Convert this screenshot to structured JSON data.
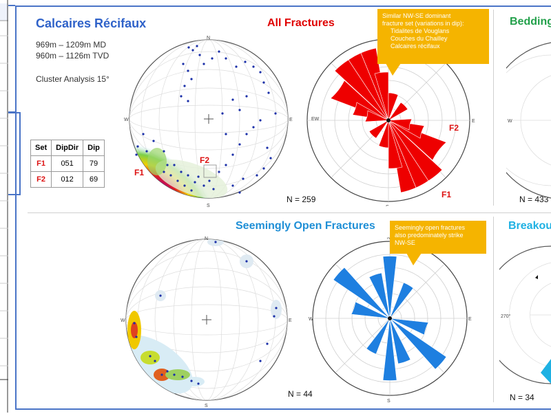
{
  "main": {
    "title": "Calcaires Récifaux",
    "depth_md": "969m – 1209m MD",
    "depth_tvd": "960m – 1126m TVD",
    "cluster": "Cluster Analysis 15°"
  },
  "sets_table": {
    "headers": [
      "Set",
      "DipDir",
      "Dip"
    ],
    "rows": [
      {
        "set": "F1",
        "dipdir": "051",
        "dip": "79"
      },
      {
        "set": "F2",
        "dipdir": "012",
        "dip": "69"
      }
    ]
  },
  "panels": {
    "all_fractures": {
      "title": "All Fractures",
      "n": "N = 259",
      "color": "#e00000"
    },
    "bedding": {
      "title": "Bedding",
      "n": "N = 433",
      "color": "#22a04a"
    },
    "open_fractures": {
      "title": "Seemingly Open Fractures",
      "n": "N = 44",
      "color": "#1f8fd6"
    },
    "breakout": {
      "title": "Breakout",
      "n": "N = 34",
      "color": "#1fb1e3"
    }
  },
  "callouts": {
    "top": {
      "line1": "Similar NW-SE dominant",
      "line2": "fracture set (variations in dip):",
      "items": [
        "Tidalites de Vouglans",
        "Couches du Chailley",
        "Calcaires récifaux"
      ]
    },
    "bottom": {
      "line1": "Seemingly open fractures",
      "line2": "also predominately strike",
      "line3": "NW-SE"
    }
  },
  "labels": {
    "f1": "F1",
    "f2": "F2",
    "n": "N",
    "s": "S",
    "e": "E",
    "w": "W",
    "ew": "EW",
    "deg270": "270°"
  },
  "colors": {
    "frame": "#4a74c7",
    "accent": "#f5b400",
    "fracture_red": "#e00000",
    "open_blue": "#1f8fd6"
  }
}
